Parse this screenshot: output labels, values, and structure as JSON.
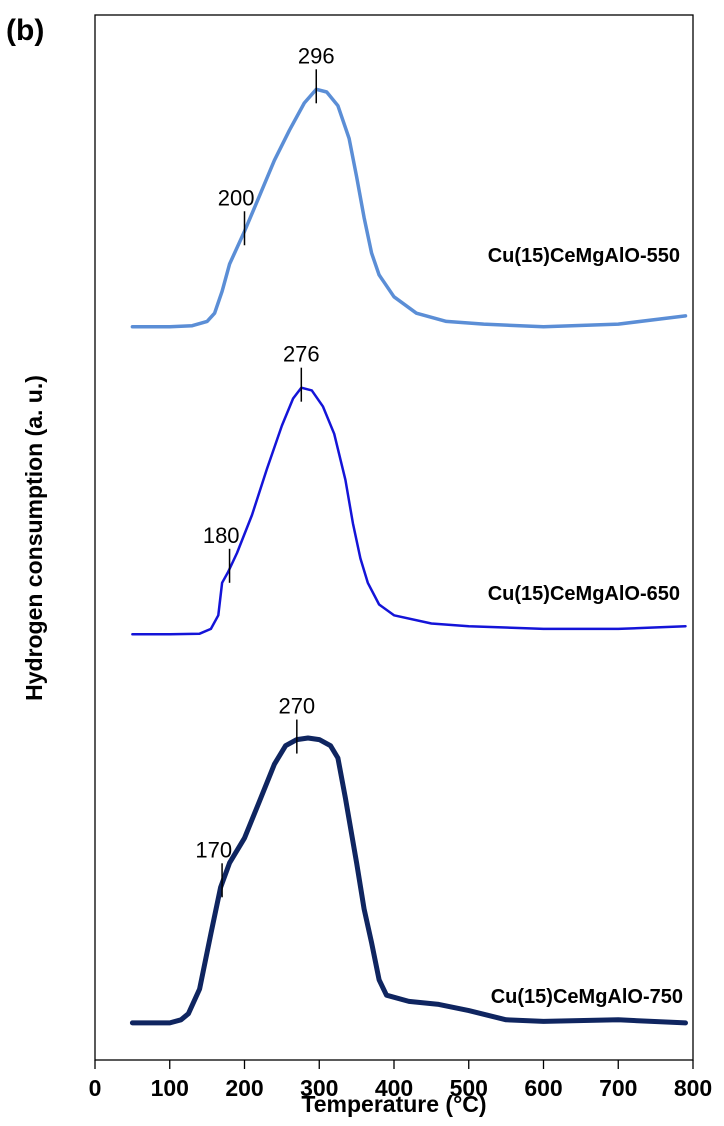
{
  "panel_label": "(b)",
  "chart_data": {
    "type": "line",
    "xlabel": "Temperature (°C)",
    "ylabel": "Hydrogen consumption (a. u.)",
    "xlim": [
      0,
      800
    ],
    "x_ticks": [
      "0",
      "100",
      "200",
      "300",
      "400",
      "500",
      "600",
      "700",
      "800"
    ],
    "y_ticks_visible": false,
    "grid": false,
    "legend": "none",
    "series": [
      {
        "name": "Cu(15)CeMgAlO-550",
        "color": "#5B8ED6",
        "points": [
          [
            50,
            0.03
          ],
          [
            100,
            0.03
          ],
          [
            130,
            0.034
          ],
          [
            150,
            0.05
          ],
          [
            160,
            0.08
          ],
          [
            170,
            0.16
          ],
          [
            180,
            0.26
          ],
          [
            200,
            0.38
          ],
          [
            220,
            0.51
          ],
          [
            240,
            0.64
          ],
          [
            260,
            0.75
          ],
          [
            280,
            0.85
          ],
          [
            296,
            0.9
          ],
          [
            310,
            0.89
          ],
          [
            325,
            0.84
          ],
          [
            340,
            0.72
          ],
          [
            350,
            0.58
          ],
          [
            360,
            0.43
          ],
          [
            370,
            0.3
          ],
          [
            380,
            0.22
          ],
          [
            400,
            0.14
          ],
          [
            430,
            0.08
          ],
          [
            470,
            0.05
          ],
          [
            520,
            0.04
          ],
          [
            600,
            0.03
          ],
          [
            700,
            0.04
          ],
          [
            760,
            0.06
          ],
          [
            790,
            0.07
          ]
        ],
        "annotations": [
          {
            "x": 200,
            "label": "200"
          },
          {
            "x": 296,
            "label": "296"
          }
        ]
      },
      {
        "name": "Cu(15)CeMgAlO-650",
        "color": "#1414D8",
        "points": [
          [
            50,
            0.01
          ],
          [
            100,
            0.01
          ],
          [
            140,
            0.012
          ],
          [
            155,
            0.03
          ],
          [
            165,
            0.08
          ],
          [
            170,
            0.2
          ],
          [
            178,
            0.24
          ],
          [
            190,
            0.31
          ],
          [
            210,
            0.45
          ],
          [
            230,
            0.62
          ],
          [
            250,
            0.78
          ],
          [
            265,
            0.88
          ],
          [
            276,
            0.92
          ],
          [
            290,
            0.91
          ],
          [
            305,
            0.85
          ],
          [
            320,
            0.75
          ],
          [
            335,
            0.58
          ],
          [
            345,
            0.42
          ],
          [
            355,
            0.29
          ],
          [
            365,
            0.2
          ],
          [
            380,
            0.12
          ],
          [
            400,
            0.08
          ],
          [
            450,
            0.05
          ],
          [
            500,
            0.04
          ],
          [
            600,
            0.03
          ],
          [
            700,
            0.03
          ],
          [
            790,
            0.04
          ]
        ],
        "annotations": [
          {
            "x": 180,
            "label": "180"
          },
          {
            "x": 276,
            "label": "276"
          }
        ]
      },
      {
        "name": "Cu(15)CeMgAlO-750",
        "color": "#0F2560",
        "points": [
          [
            50,
            0.01
          ],
          [
            100,
            0.01
          ],
          [
            115,
            0.02
          ],
          [
            125,
            0.04
          ],
          [
            140,
            0.12
          ],
          [
            155,
            0.3
          ],
          [
            168,
            0.45
          ],
          [
            180,
            0.53
          ],
          [
            200,
            0.61
          ],
          [
            220,
            0.73
          ],
          [
            240,
            0.85
          ],
          [
            255,
            0.91
          ],
          [
            270,
            0.93
          ],
          [
            285,
            0.935
          ],
          [
            300,
            0.93
          ],
          [
            315,
            0.91
          ],
          [
            325,
            0.87
          ],
          [
            335,
            0.74
          ],
          [
            350,
            0.53
          ],
          [
            360,
            0.38
          ],
          [
            370,
            0.27
          ],
          [
            380,
            0.15
          ],
          [
            390,
            0.1
          ],
          [
            420,
            0.08
          ],
          [
            460,
            0.07
          ],
          [
            500,
            0.05
          ],
          [
            550,
            0.02
          ],
          [
            600,
            0.015
          ],
          [
            700,
            0.02
          ],
          [
            790,
            0.01
          ]
        ],
        "annotations": [
          {
            "x": 170,
            "label": "170"
          },
          {
            "x": 270,
            "label": "270"
          }
        ]
      }
    ]
  }
}
